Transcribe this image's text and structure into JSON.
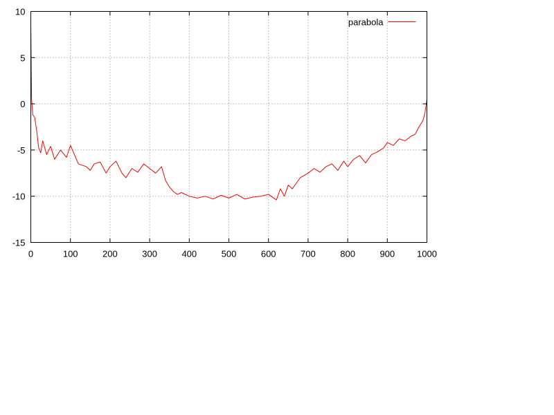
{
  "chart_data": {
    "type": "line",
    "title": "",
    "xlabel": "",
    "ylabel": "",
    "xlim": [
      0,
      1000
    ],
    "ylim": [
      -15,
      10
    ],
    "x_ticks": [
      0,
      100,
      200,
      300,
      400,
      500,
      600,
      700,
      800,
      900,
      1000
    ],
    "y_ticks": [
      -15,
      -10,
      -5,
      0,
      5,
      10
    ],
    "x_tick_labels": [
      "0",
      "100",
      "200",
      "300",
      "400",
      "500",
      "600",
      "700",
      "800",
      "900",
      "1000"
    ],
    "y_tick_labels": [
      "-15",
      "-10",
      "-5",
      "0",
      "5",
      "10"
    ],
    "grid": true,
    "grid_style": "dotted",
    "legend": {
      "position": "top-right"
    },
    "series": [
      {
        "name": "parabola",
        "color": "#ff0000",
        "x": [
          0,
          2,
          5,
          10,
          15,
          20,
          25,
          30,
          40,
          50,
          60,
          75,
          90,
          100,
          120,
          140,
          150,
          160,
          175,
          190,
          200,
          215,
          230,
          240,
          255,
          270,
          285,
          300,
          315,
          330,
          340,
          350,
          360,
          370,
          380,
          400,
          420,
          440,
          460,
          480,
          500,
          520,
          540,
          560,
          580,
          600,
          620,
          630,
          640,
          650,
          660,
          680,
          700,
          715,
          730,
          745,
          760,
          775,
          790,
          800,
          815,
          830,
          845,
          860,
          875,
          890,
          900,
          915,
          930,
          945,
          960,
          970,
          980,
          990,
          995,
          1000
        ],
        "values": [
          8.6,
          0.5,
          -1.2,
          -1.5,
          -3.0,
          -4.8,
          -5.3,
          -4.0,
          -5.5,
          -4.6,
          -6.0,
          -5.0,
          -5.8,
          -4.5,
          -6.5,
          -6.8,
          -7.2,
          -6.5,
          -6.3,
          -7.5,
          -6.8,
          -6.2,
          -7.5,
          -8.0,
          -7.0,
          -7.4,
          -6.5,
          -7.0,
          -7.5,
          -6.8,
          -8.3,
          -9.0,
          -9.5,
          -9.8,
          -9.6,
          -10.0,
          -10.2,
          -10.0,
          -10.3,
          -9.9,
          -10.2,
          -9.8,
          -10.3,
          -10.1,
          -10.0,
          -9.8,
          -10.4,
          -9.2,
          -10.0,
          -8.8,
          -9.2,
          -8.0,
          -7.5,
          -7.0,
          -7.4,
          -6.8,
          -6.5,
          -7.2,
          -6.2,
          -6.8,
          -6.0,
          -5.6,
          -6.4,
          -5.5,
          -5.2,
          -4.8,
          -4.2,
          -4.5,
          -3.8,
          -4.0,
          -3.5,
          -3.3,
          -2.5,
          -1.8,
          -1.0,
          0.5
        ]
      }
    ]
  }
}
